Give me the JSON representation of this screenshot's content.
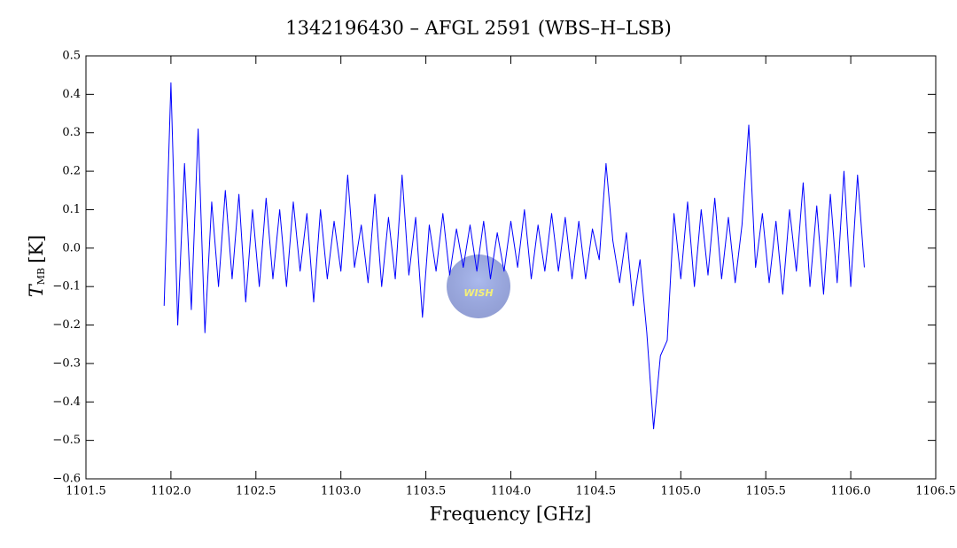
{
  "chart_data": {
    "type": "line",
    "title": "1342196430 – AFGL 2591 (WBS–H–LSB)",
    "xlabel": "Frequency [GHz]",
    "ylabel": {
      "symbol": "T",
      "subscript": "MB",
      "unit": "[K]"
    },
    "watermark": "WISH",
    "color": "#0000ff",
    "xlim": [
      1101.5,
      1106.5
    ],
    "ylim": [
      -0.6,
      0.5
    ],
    "xticks": [
      1101.5,
      {
        "value": 1102,
        "label": "1102.0"
      },
      1102.5,
      {
        "value": 1103,
        "label": "1103.0"
      },
      1103.5,
      {
        "value": 1104,
        "label": "1104.0"
      },
      1104.5,
      {
        "value": 1105,
        "label": "1105.0"
      },
      1105.5,
      {
        "value": 1106,
        "label": "1106.0"
      },
      1106.5
    ],
    "yticks": [
      {
        "value": -0.6,
        "label": "−0.6"
      },
      {
        "value": -0.5,
        "label": "−0.5"
      },
      {
        "value": -0.4,
        "label": "−0.4"
      },
      {
        "value": -0.3,
        "label": "−0.3"
      },
      {
        "value": -0.2,
        "label": "−0.2"
      },
      {
        "value": -0.1,
        "label": "−0.1"
      },
      {
        "value": 0,
        "label": "0.0"
      },
      0.1,
      0.2,
      0.3,
      0.4,
      0.5
    ],
    "x": [
      1101.96,
      1102.0,
      1102.04,
      1102.08,
      1102.12,
      1102.16,
      1102.2,
      1102.24,
      1102.28,
      1102.32,
      1102.36,
      1102.4,
      1102.44,
      1102.48,
      1102.52,
      1102.56,
      1102.6,
      1102.64,
      1102.68,
      1102.72,
      1102.76,
      1102.8,
      1102.84,
      1102.88,
      1102.92,
      1102.96,
      1103.0,
      1103.04,
      1103.08,
      1103.12,
      1103.16,
      1103.2,
      1103.24,
      1103.28,
      1103.32,
      1103.36,
      1103.4,
      1103.44,
      1103.48,
      1103.52,
      1103.56,
      1103.6,
      1103.64,
      1103.68,
      1103.72,
      1103.76,
      1103.8,
      1103.84,
      1103.88,
      1103.92,
      1103.96,
      1104.0,
      1104.04,
      1104.08,
      1104.12,
      1104.16,
      1104.2,
      1104.24,
      1104.28,
      1104.32,
      1104.36,
      1104.4,
      1104.44,
      1104.48,
      1104.52,
      1104.56,
      1104.6,
      1104.64,
      1104.68,
      1104.72,
      1104.76,
      1104.8,
      1104.84,
      1104.88,
      1104.92,
      1104.96,
      1105.0,
      1105.04,
      1105.08,
      1105.12,
      1105.16,
      1105.2,
      1105.24,
      1105.28,
      1105.32,
      1105.36,
      1105.4,
      1105.44,
      1105.48,
      1105.52,
      1105.56,
      1105.6,
      1105.64,
      1105.68,
      1105.72,
      1105.76,
      1105.8,
      1105.84,
      1105.88,
      1105.92,
      1105.96,
      1106.0,
      1106.04,
      1106.08
    ],
    "values": [
      -0.15,
      0.43,
      -0.2,
      0.22,
      -0.16,
      0.31,
      -0.22,
      0.12,
      -0.1,
      0.15,
      -0.08,
      0.14,
      -0.14,
      0.1,
      -0.1,
      0.13,
      -0.08,
      0.1,
      -0.1,
      0.12,
      -0.06,
      0.09,
      -0.14,
      0.1,
      -0.08,
      0.07,
      -0.06,
      0.19,
      -0.05,
      0.06,
      -0.09,
      0.14,
      -0.1,
      0.08,
      -0.08,
      0.19,
      -0.07,
      0.08,
      -0.18,
      0.06,
      -0.06,
      0.09,
      -0.07,
      0.05,
      -0.05,
      0.06,
      -0.06,
      0.07,
      -0.08,
      0.04,
      -0.06,
      0.07,
      -0.05,
      0.1,
      -0.08,
      0.06,
      -0.06,
      0.09,
      -0.06,
      0.08,
      -0.08,
      0.07,
      -0.08,
      0.05,
      -0.03,
      0.22,
      0.02,
      -0.09,
      0.04,
      -0.15,
      -0.03,
      -0.22,
      -0.47,
      -0.28,
      -0.24,
      0.09,
      -0.08,
      0.12,
      -0.1,
      0.1,
      -0.07,
      0.13,
      -0.08,
      0.08,
      -0.09,
      0.06,
      0.32,
      -0.05,
      0.09,
      -0.09,
      0.07,
      -0.12,
      0.1,
      -0.06,
      0.17,
      -0.1,
      0.11,
      -0.12,
      0.14,
      -0.09,
      0.2,
      -0.1,
      0.19,
      -0.05
    ]
  }
}
